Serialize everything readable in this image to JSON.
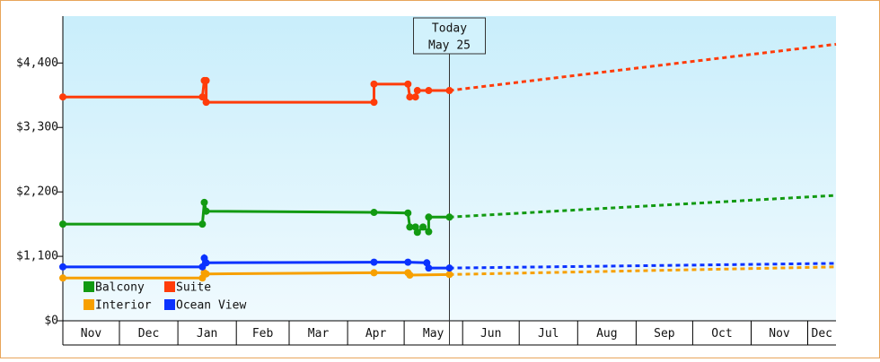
{
  "chart_data": {
    "type": "line",
    "xlim": [
      0,
      410
    ],
    "xticks": [
      {
        "value": 0,
        "label": "Nov"
      },
      {
        "value": 30,
        "label": "Dec"
      },
      {
        "value": 61,
        "label": "Jan"
      },
      {
        "value": 92,
        "label": "Feb"
      },
      {
        "value": 120,
        "label": "Mar"
      },
      {
        "value": 151,
        "label": "Apr"
      },
      {
        "value": 181,
        "label": "May"
      },
      {
        "value": 212,
        "label": "Jun"
      },
      {
        "value": 242,
        "label": "Jul"
      },
      {
        "value": 273,
        "label": "Aug"
      },
      {
        "value": 304,
        "label": "Sep"
      },
      {
        "value": 334,
        "label": "Oct"
      },
      {
        "value": 365,
        "label": "Nov"
      },
      {
        "value": 395,
        "label": "Dec"
      }
    ],
    "ylim": [
      0,
      5200
    ],
    "yticks": [
      {
        "value": 0,
        "label": "$0"
      },
      {
        "value": 1100,
        "label": "$1,100"
      },
      {
        "value": 2200,
        "label": "$2,200"
      },
      {
        "value": 3300,
        "label": "$3,300"
      },
      {
        "value": 4400,
        "label": "$4,400"
      }
    ],
    "today": {
      "x": 205,
      "label": [
        "Today",
        "May 25"
      ]
    },
    "series": [
      {
        "name": "Balcony",
        "color": "#129a12",
        "x": [
          0,
          74,
          75,
          76,
          165,
          183,
          184,
          187,
          188,
          191,
          194,
          194,
          205
        ],
        "values": [
          1650,
          1650,
          2020,
          1870,
          1850,
          1840,
          1600,
          1600,
          1510,
          1600,
          1520,
          1770,
          1770
        ],
        "forecast_x": [
          205,
          410
        ],
        "forecast_values": [
          1770,
          2140
        ]
      },
      {
        "name": "Suite",
        "color": "#ff3c0a",
        "x": [
          0,
          74,
          75,
          76,
          76,
          165,
          165,
          183,
          184,
          187,
          188,
          194,
          205
        ],
        "values": [
          3820,
          3820,
          4100,
          4100,
          3730,
          3730,
          4040,
          4040,
          3820,
          3820,
          3930,
          3930,
          3930
        ],
        "forecast_x": [
          205,
          410
        ],
        "forecast_values": [
          3930,
          4720
        ]
      },
      {
        "name": "Interior",
        "color": "#f7a000",
        "x": [
          0,
          74,
          75,
          76,
          165,
          183,
          184,
          205
        ],
        "values": [
          730,
          730,
          820,
          800,
          820,
          820,
          780,
          790
        ],
        "forecast_x": [
          205,
          410
        ],
        "forecast_values": [
          790,
          920
        ]
      },
      {
        "name": "Ocean View",
        "color": "#0a32ff",
        "x": [
          0,
          74,
          75,
          76,
          165,
          183,
          193,
          194,
          205
        ],
        "values": [
          920,
          920,
          1070,
          990,
          1000,
          1000,
          990,
          900,
          900
        ],
        "forecast_x": [
          205,
          410
        ],
        "forecast_values": [
          900,
          980
        ]
      }
    ]
  }
}
